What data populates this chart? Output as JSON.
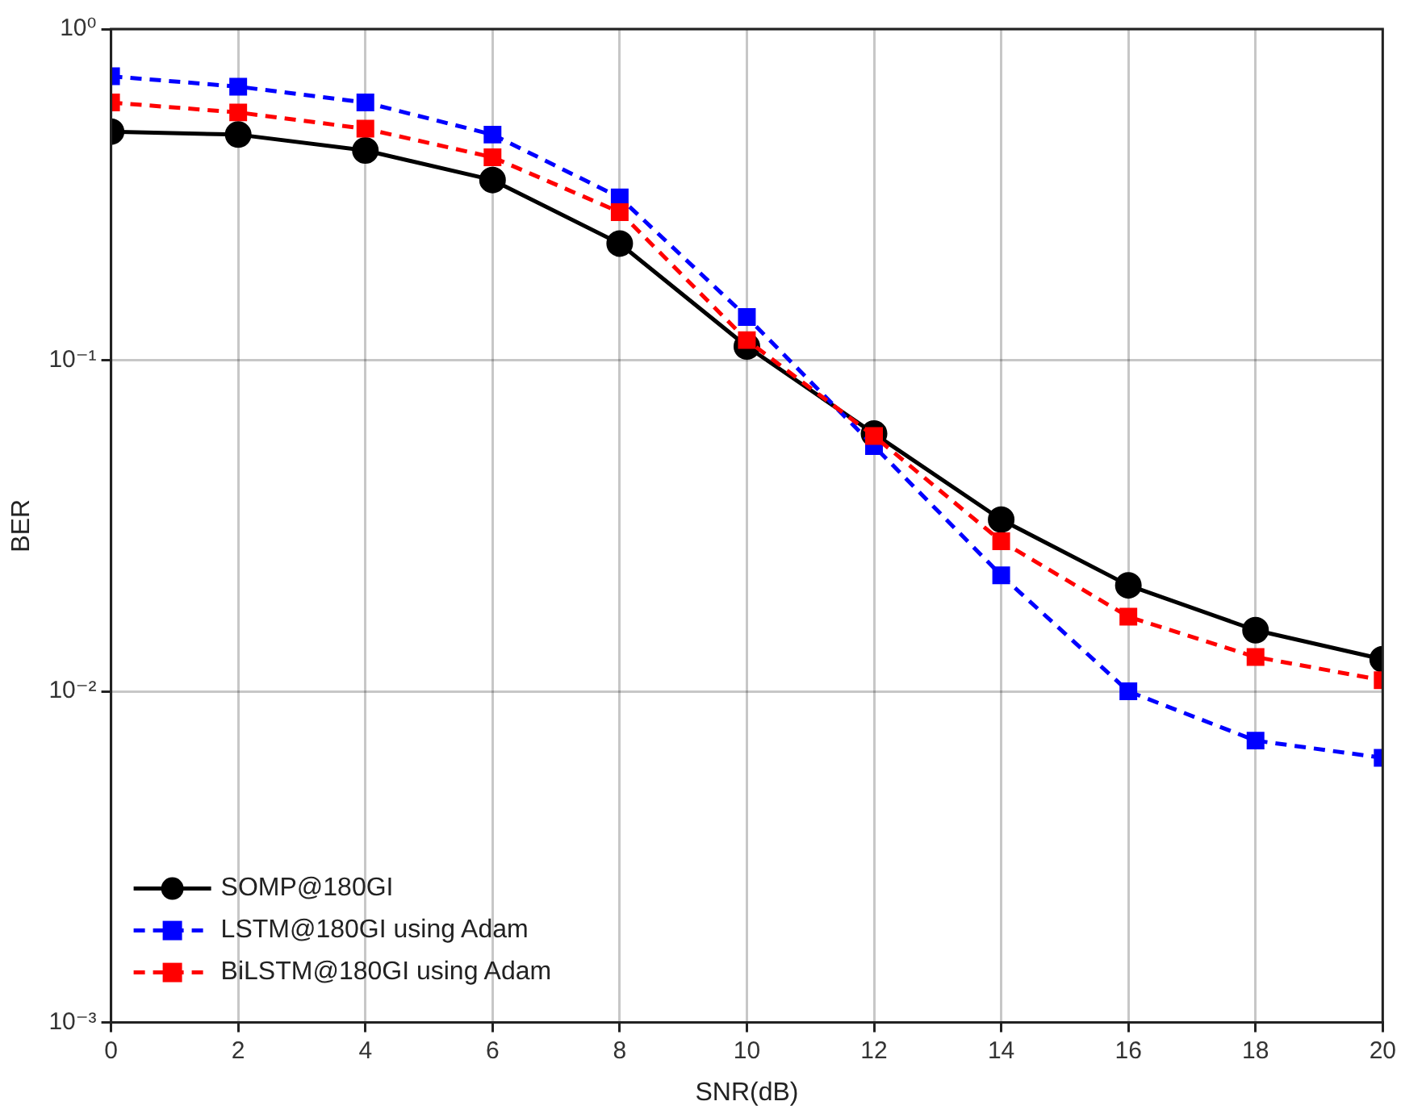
{
  "chart_data": {
    "type": "line",
    "xlabel": "SNR(dB)",
    "ylabel": "BER",
    "x": [
      0,
      2,
      4,
      6,
      8,
      10,
      12,
      14,
      16,
      18,
      20
    ],
    "series": [
      {
        "name": "SOMP@180GI",
        "color": "#000000",
        "marker": "circle",
        "line_style": "solid",
        "values": [
          0.49,
          0.48,
          0.43,
          0.35,
          0.225,
          0.11,
          0.06,
          0.033,
          0.0209,
          0.0153,
          0.0125
        ]
      },
      {
        "name": "LSTM@180GI using Adam",
        "color": "#0000ff",
        "marker": "square",
        "line_style": "dashed",
        "values": [
          0.72,
          0.67,
          0.6,
          0.48,
          0.31,
          0.135,
          0.055,
          0.0224,
          0.01,
          0.0071,
          0.0063
        ]
      },
      {
        "name": "BiLSTM@180GI using Adam",
        "color": "#ff0000",
        "marker": "square",
        "line_style": "dashed",
        "values": [
          0.6,
          0.56,
          0.5,
          0.41,
          0.28,
          0.115,
          0.059,
          0.0284,
          0.0168,
          0.0127,
          0.0108
        ]
      }
    ],
    "xlim": [
      0,
      20
    ],
    "xticks": [
      0,
      2,
      4,
      6,
      8,
      10,
      12,
      14,
      16,
      18,
      20
    ],
    "ylim": [
      0.001,
      1
    ],
    "yticks": [
      {
        "value": 0.001,
        "label": "10⁻³"
      },
      {
        "value": 0.01,
        "label": "10⁻²"
      },
      {
        "value": 0.1,
        "label": "10⁻¹"
      },
      {
        "value": 1,
        "label": "10⁰"
      }
    ],
    "log": "y",
    "grid": true,
    "legend": "bottom left"
  }
}
